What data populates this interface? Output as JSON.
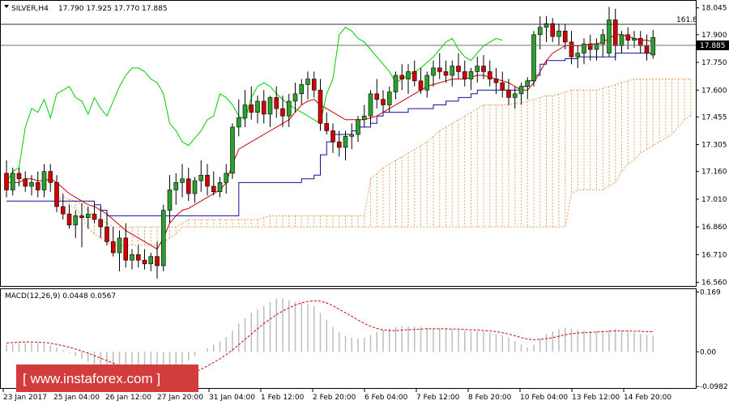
{
  "header": {
    "symbol": "SILVER,H4",
    "ohlc": "17.790 17.925 17.770 17.885"
  },
  "price_axis": {
    "ticks": [
      "18.045",
      "17.900",
      "17.750",
      "17.600",
      "17.455",
      "17.305",
      "17.160",
      "17.010",
      "16.860",
      "16.710",
      "16.560"
    ],
    "current_price": "17.885",
    "fib_label": "161.8"
  },
  "time_axis": {
    "labels": [
      "23 Jan 2017",
      "25 Jan 04:00",
      "26 Jan 12:00",
      "27 Jan 20:00",
      "31 Jan 04:00",
      "1 Feb 12:00",
      "2 Feb 20:00",
      "6 Feb 04:00",
      "7 Feb 12:00",
      "8 Feb 20:00",
      "10 Feb 04:00",
      "13 Feb 12:00",
      "14 Feb 20:00"
    ]
  },
  "macd": {
    "title": "MACD(12,26,9) 0.0448 0.0567",
    "ticks": [
      "0.169",
      "0.00",
      "-0.0982"
    ]
  },
  "watermark": "[ www.instaforex.com ]",
  "colors": {
    "bull": "#2ca02c",
    "bear": "#d40000",
    "tenkan": "#cc0000",
    "kijun": "#1010a0",
    "chikou": "#00cc00",
    "cloud": "#e8a060",
    "macd_hist": "#bdbdbd",
    "macd_signal": "#d40000",
    "watermark_bg": "#d23c3c"
  },
  "chart_data": {
    "type": "candlestick",
    "ylim": [
      16.545,
      18.07
    ],
    "macd_ylim": [
      -0.1,
      0.17
    ],
    "candles": [
      [
        17.15,
        17.22,
        17.02,
        17.06
      ],
      [
        17.06,
        17.18,
        17.03,
        17.15
      ],
      [
        17.15,
        17.18,
        17.08,
        17.12
      ],
      [
        17.12,
        17.16,
        17.05,
        17.08
      ],
      [
        17.08,
        17.14,
        17.03,
        17.1
      ],
      [
        17.1,
        17.16,
        17.02,
        17.06
      ],
      [
        17.06,
        17.2,
        17.02,
        17.16
      ],
      [
        17.16,
        17.2,
        17.05,
        17.1
      ],
      [
        17.1,
        17.14,
        16.94,
        16.97
      ],
      [
        16.97,
        17.04,
        16.9,
        16.93
      ],
      [
        16.93,
        16.98,
        16.85,
        16.87
      ],
      [
        16.87,
        16.95,
        16.8,
        16.92
      ],
      [
        16.92,
        16.99,
        16.75,
        16.91
      ],
      [
        16.91,
        16.97,
        16.85,
        16.93
      ],
      [
        16.93,
        16.99,
        16.88,
        16.9
      ],
      [
        16.9,
        16.97,
        16.8,
        16.86
      ],
      [
        16.86,
        16.95,
        16.76,
        16.78
      ],
      [
        16.78,
        16.86,
        16.7,
        16.72
      ],
      [
        16.72,
        16.84,
        16.62,
        16.8
      ],
      [
        16.8,
        16.88,
        16.64,
        16.68
      ],
      [
        16.68,
        16.74,
        16.63,
        16.71
      ],
      [
        16.71,
        16.76,
        16.64,
        16.68
      ],
      [
        16.68,
        16.74,
        16.63,
        16.66
      ],
      [
        16.66,
        16.72,
        16.62,
        16.7
      ],
      [
        16.7,
        16.78,
        16.58,
        16.65
      ],
      [
        16.65,
        16.98,
        16.62,
        16.95
      ],
      [
        16.95,
        17.14,
        16.88,
        17.06
      ],
      [
        17.06,
        17.15,
        16.98,
        17.1
      ],
      [
        17.1,
        17.2,
        17.02,
        17.12
      ],
      [
        17.12,
        17.18,
        17.0,
        17.04
      ],
      [
        17.04,
        17.13,
        16.99,
        17.11
      ],
      [
        17.11,
        17.22,
        17.05,
        17.14
      ],
      [
        17.14,
        17.2,
        17.03,
        17.08
      ],
      [
        17.08,
        17.16,
        17.03,
        17.05
      ],
      [
        17.05,
        17.13,
        17.02,
        17.1
      ],
      [
        17.1,
        17.2,
        17.04,
        17.15
      ],
      [
        17.15,
        17.42,
        17.12,
        17.4
      ],
      [
        17.4,
        17.55,
        17.35,
        17.45
      ],
      [
        17.45,
        17.6,
        17.4,
        17.52
      ],
      [
        17.52,
        17.62,
        17.44,
        17.48
      ],
      [
        17.48,
        17.57,
        17.42,
        17.54
      ],
      [
        17.54,
        17.6,
        17.42,
        17.47
      ],
      [
        17.47,
        17.57,
        17.4,
        17.56
      ],
      [
        17.56,
        17.62,
        17.45,
        17.5
      ],
      [
        17.5,
        17.57,
        17.4,
        17.46
      ],
      [
        17.46,
        17.58,
        17.4,
        17.54
      ],
      [
        17.54,
        17.64,
        17.48,
        17.58
      ],
      [
        17.58,
        17.66,
        17.52,
        17.63
      ],
      [
        17.63,
        17.7,
        17.55,
        17.66
      ],
      [
        17.66,
        17.7,
        17.56,
        17.6
      ],
      [
        17.6,
        17.66,
        17.38,
        17.42
      ],
      [
        17.42,
        17.48,
        17.36,
        17.38
      ],
      [
        17.38,
        17.42,
        17.26,
        17.32
      ],
      [
        17.32,
        17.38,
        17.24,
        17.29
      ],
      [
        17.29,
        17.38,
        17.22,
        17.35
      ],
      [
        17.35,
        17.42,
        17.28,
        17.36
      ],
      [
        17.36,
        17.46,
        17.32,
        17.44
      ],
      [
        17.44,
        17.52,
        17.4,
        17.46
      ],
      [
        17.46,
        17.6,
        17.42,
        17.58
      ],
      [
        17.58,
        17.66,
        17.5,
        17.55
      ],
      [
        17.55,
        17.6,
        17.48,
        17.52
      ],
      [
        17.52,
        17.62,
        17.48,
        17.59
      ],
      [
        17.59,
        17.7,
        17.55,
        17.68
      ],
      [
        17.68,
        17.74,
        17.6,
        17.66
      ],
      [
        17.66,
        17.74,
        17.58,
        17.7
      ],
      [
        17.7,
        17.76,
        17.62,
        17.65
      ],
      [
        17.65,
        17.72,
        17.58,
        17.6
      ],
      [
        17.6,
        17.7,
        17.56,
        17.68
      ],
      [
        17.68,
        17.76,
        17.62,
        17.72
      ],
      [
        17.72,
        17.8,
        17.66,
        17.7
      ],
      [
        17.7,
        17.76,
        17.64,
        17.68
      ],
      [
        17.68,
        17.76,
        17.62,
        17.73
      ],
      [
        17.73,
        17.8,
        17.66,
        17.7
      ],
      [
        17.7,
        17.76,
        17.62,
        17.66
      ],
      [
        17.66,
        17.72,
        17.6,
        17.7
      ],
      [
        17.7,
        17.78,
        17.64,
        17.73
      ],
      [
        17.73,
        17.79,
        17.66,
        17.7
      ],
      [
        17.7,
        17.76,
        17.62,
        17.66
      ],
      [
        17.66,
        17.72,
        17.58,
        17.64
      ],
      [
        17.64,
        17.7,
        17.56,
        17.6
      ],
      [
        17.6,
        17.66,
        17.52,
        17.56
      ],
      [
        17.56,
        17.62,
        17.5,
        17.58
      ],
      [
        17.58,
        17.64,
        17.52,
        17.62
      ],
      [
        17.62,
        17.67,
        17.55,
        17.65
      ],
      [
        17.65,
        17.92,
        17.62,
        17.9
      ],
      [
        17.9,
        18.0,
        17.82,
        17.94
      ],
      [
        17.94,
        18.0,
        17.86,
        17.96
      ],
      [
        17.96,
        17.99,
        17.86,
        17.89
      ],
      [
        17.89,
        17.96,
        17.84,
        17.92
      ],
      [
        17.92,
        17.96,
        17.82,
        17.86
      ],
      [
        17.86,
        17.92,
        17.74,
        17.78
      ],
      [
        17.78,
        17.84,
        17.72,
        17.8
      ],
      [
        17.8,
        17.88,
        17.74,
        17.85
      ],
      [
        17.85,
        17.9,
        17.76,
        17.82
      ],
      [
        17.82,
        17.88,
        17.76,
        17.85
      ],
      [
        17.85,
        17.93,
        17.78,
        17.9
      ],
      [
        17.8,
        18.05,
        17.78,
        17.98
      ],
      [
        17.98,
        18.04,
        17.76,
        17.84
      ],
      [
        17.84,
        17.92,
        17.8,
        17.9
      ],
      [
        17.9,
        17.94,
        17.82,
        17.87
      ],
      [
        17.87,
        17.92,
        17.83,
        17.88
      ],
      [
        17.88,
        17.92,
        17.8,
        17.84
      ],
      [
        17.84,
        17.9,
        17.76,
        17.8
      ],
      [
        17.79,
        17.925,
        17.77,
        17.885
      ]
    ],
    "macd_hist": [
      0.02,
      0.022,
      0.024,
      0.025,
      0.025,
      0.024,
      0.022,
      0.018,
      0.012,
      0.005,
      -0.003,
      -0.012,
      -0.02,
      -0.028,
      -0.036,
      -0.044,
      -0.052,
      -0.06,
      -0.068,
      -0.074,
      -0.08,
      -0.084,
      -0.087,
      -0.088,
      -0.089,
      -0.082,
      -0.07,
      -0.055,
      -0.04,
      -0.025,
      -0.012,
      0.0,
      0.01,
      0.02,
      0.03,
      0.042,
      0.06,
      0.08,
      0.095,
      0.11,
      0.12,
      0.13,
      0.14,
      0.15,
      0.15,
      0.145,
      0.14,
      0.138,
      0.135,
      0.13,
      0.11,
      0.09,
      0.07,
      0.055,
      0.045,
      0.04,
      0.038,
      0.04,
      0.048,
      0.056,
      0.062,
      0.066,
      0.07,
      0.072,
      0.072,
      0.071,
      0.07,
      0.068,
      0.066,
      0.065,
      0.064,
      0.063,
      0.062,
      0.06,
      0.058,
      0.057,
      0.056,
      0.054,
      0.05,
      0.046,
      0.04,
      0.03,
      0.02,
      0.012,
      0.02,
      0.038,
      0.05,
      0.058,
      0.064,
      0.068,
      0.066,
      0.062,
      0.06,
      0.058,
      0.058,
      0.06,
      0.062,
      0.064,
      0.06,
      0.058,
      0.054,
      0.05,
      0.048,
      0.0448
    ],
    "macd_signal": [
      0.025,
      0.026,
      0.027,
      0.028,
      0.028,
      0.027,
      0.026,
      0.024,
      0.021,
      0.017,
      0.013,
      0.008,
      0.002,
      -0.004,
      -0.011,
      -0.018,
      -0.025,
      -0.032,
      -0.039,
      -0.046,
      -0.053,
      -0.059,
      -0.064,
      -0.069,
      -0.073,
      -0.076,
      -0.077,
      -0.076,
      -0.072,
      -0.066,
      -0.058,
      -0.049,
      -0.04,
      -0.03,
      -0.02,
      -0.008,
      0.005,
      0.02,
      0.035,
      0.05,
      0.065,
      0.08,
      0.092,
      0.105,
      0.115,
      0.124,
      0.132,
      0.138,
      0.142,
      0.144,
      0.143,
      0.138,
      0.13,
      0.12,
      0.11,
      0.1,
      0.09,
      0.08,
      0.072,
      0.066,
      0.062,
      0.06,
      0.06,
      0.061,
      0.062,
      0.063,
      0.064,
      0.065,
      0.065,
      0.065,
      0.065,
      0.064,
      0.064,
      0.063,
      0.062,
      0.061,
      0.06,
      0.059,
      0.057,
      0.054,
      0.05,
      0.045,
      0.04,
      0.036,
      0.034,
      0.035,
      0.037,
      0.04,
      0.044,
      0.048,
      0.051,
      0.053,
      0.054,
      0.055,
      0.056,
      0.057,
      0.058,
      0.059,
      0.059,
      0.059,
      0.058,
      0.058,
      0.057,
      0.0567
    ],
    "tenkan": [
      17.1,
      17.1,
      17.1,
      17.12,
      17.12,
      17.11,
      17.11,
      17.12,
      17.1,
      17.07,
      17.04,
      17.02,
      17.0,
      16.98,
      16.97,
      16.95,
      16.93,
      16.9,
      16.87,
      16.84,
      16.82,
      16.8,
      16.78,
      16.76,
      16.74,
      16.8,
      16.88,
      16.92,
      16.95,
      16.96,
      16.98,
      17.0,
      17.02,
      17.04,
      17.06,
      17.1,
      17.2,
      17.28,
      17.3,
      17.32,
      17.34,
      17.36,
      17.38,
      17.4,
      17.42,
      17.44,
      17.48,
      17.52,
      17.54,
      17.55,
      17.52,
      17.5,
      17.48,
      17.46,
      17.44,
      17.44,
      17.44,
      17.44,
      17.45,
      17.46,
      17.48,
      17.5,
      17.52,
      17.54,
      17.56,
      17.58,
      17.6,
      17.62,
      17.63,
      17.64,
      17.65,
      17.66,
      17.66,
      17.66,
      17.67,
      17.68,
      17.68,
      17.67,
      17.66,
      17.65,
      17.64,
      17.62,
      17.6,
      17.6,
      17.64,
      17.7,
      17.76,
      17.8,
      17.82,
      17.84,
      17.84,
      17.84,
      17.84,
      17.85,
      17.85,
      17.86,
      17.88,
      17.9,
      17.9,
      17.89,
      17.88,
      17.87,
      17.87,
      17.86
    ],
    "kijun": [
      17.0,
      17.0,
      17.0,
      17.0,
      17.0,
      17.0,
      17.0,
      17.0,
      17.0,
      17.0,
      17.0,
      17.0,
      17.0,
      17.0,
      16.98,
      16.95,
      16.92,
      16.92,
      16.92,
      16.92,
      16.92,
      16.92,
      16.92,
      16.92,
      16.92,
      16.92,
      16.92,
      16.92,
      16.92,
      16.92,
      16.92,
      16.92,
      16.92,
      16.92,
      16.92,
      16.92,
      16.92,
      17.1,
      17.1,
      17.1,
      17.1,
      17.1,
      17.1,
      17.1,
      17.1,
      17.1,
      17.1,
      17.12,
      17.12,
      17.14,
      17.25,
      17.32,
      17.36,
      17.36,
      17.36,
      17.38,
      17.4,
      17.4,
      17.42,
      17.46,
      17.48,
      17.48,
      17.48,
      17.48,
      17.5,
      17.5,
      17.5,
      17.5,
      17.52,
      17.52,
      17.54,
      17.54,
      17.56,
      17.56,
      17.58,
      17.6,
      17.6,
      17.6,
      17.6,
      17.6,
      17.6,
      17.6,
      17.62,
      17.65,
      17.68,
      17.74,
      17.76,
      17.76,
      17.76,
      17.77,
      17.77,
      17.78,
      17.78,
      17.78,
      17.78,
      17.78,
      17.78,
      17.8,
      17.8,
      17.8,
      17.8,
      17.8,
      17.8,
      17.8
    ],
    "chikou": [
      17.1,
      17.16,
      17.18,
      17.4,
      17.5,
      17.48,
      17.55,
      17.45,
      17.58,
      17.6,
      17.62,
      17.56,
      17.54,
      17.47,
      17.56,
      17.5,
      17.46,
      17.54,
      17.62,
      17.68,
      17.72,
      17.72,
      17.7,
      17.66,
      17.64,
      17.58,
      17.42,
      17.38,
      17.32,
      17.3,
      17.34,
      17.38,
      17.44,
      17.46,
      17.58,
      17.56,
      17.52,
      17.46,
      17.44,
      17.56,
      17.62,
      17.64,
      17.62,
      17.58,
      17.55,
      17.52,
      17.5,
      17.48,
      17.46,
      17.44,
      17.42,
      17.58,
      17.66,
      17.9,
      17.94,
      17.92,
      17.88,
      17.86,
      17.82,
      17.78,
      17.74,
      17.7,
      17.64,
      17.66,
      17.68,
      17.7,
      17.72,
      17.75,
      17.78,
      17.82,
      17.86,
      17.88,
      17.82,
      17.78,
      17.76,
      17.8,
      17.84,
      17.86,
      17.88,
      17.87
    ],
    "senkou_a": [
      17.02,
      17.02,
      17.01,
      17.0,
      16.98,
      16.95,
      16.92,
      16.9,
      16.88,
      16.86,
      16.86,
      16.86,
      16.86,
      16.86,
      16.86,
      16.86,
      16.86,
      16.86,
      16.86,
      16.86,
      16.88,
      16.9,
      16.9,
      16.9,
      16.9,
      16.9,
      16.9,
      16.9,
      16.9,
      16.9,
      16.9,
      16.9,
      16.9,
      16.91,
      16.92,
      16.92,
      16.92,
      16.92,
      16.92,
      16.92,
      16.92,
      16.92,
      16.92,
      16.92,
      16.92,
      16.92,
      16.92,
      16.92,
      16.92,
      16.92,
      17.12,
      17.15,
      17.18,
      17.2,
      17.22,
      17.24,
      17.26,
      17.28,
      17.3,
      17.32,
      17.35,
      17.38,
      17.4,
      17.42,
      17.44,
      17.46,
      17.48,
      17.5,
      17.52,
      17.52,
      17.52,
      17.52,
      17.52,
      17.53,
      17.53,
      17.54,
      17.55,
      17.56,
      17.57,
      17.57,
      17.58,
      17.59,
      17.6,
      17.6,
      17.6,
      17.6,
      17.6,
      17.61,
      17.62,
      17.63,
      17.64,
      17.65,
      17.66,
      17.66,
      17.66,
      17.66,
      17.66,
      17.66,
      17.66,
      17.66,
      17.66,
      17.66,
      17.66,
      17.66,
      17.66,
      17.66
    ],
    "senkou_b": [
      17.02,
      17.0,
      16.98,
      16.96,
      16.92,
      16.86,
      16.82,
      16.8,
      16.78,
      16.76,
      16.76,
      16.76,
      16.76,
      16.76,
      16.76,
      16.76,
      16.76,
      16.78,
      16.8,
      16.82,
      16.86,
      16.86,
      16.86,
      16.86,
      16.86,
      16.86,
      16.86,
      16.86,
      16.86,
      16.86,
      16.86,
      16.86,
      16.86,
      16.86,
      16.86,
      16.86,
      16.86,
      16.86,
      16.86,
      16.86,
      16.86,
      16.86,
      16.86,
      16.86,
      16.86,
      16.86,
      16.86,
      16.86,
      16.86,
      16.86,
      16.86,
      16.86,
      16.86,
      16.86,
      16.86,
      16.86,
      16.86,
      16.86,
      16.86,
      16.86,
      16.86,
      16.86,
      16.86,
      16.86,
      16.86,
      16.86,
      16.86,
      16.86,
      16.86,
      16.86,
      16.86,
      16.86,
      16.86,
      16.86,
      16.86,
      16.86,
      16.86,
      16.86,
      16.86,
      16.86,
      16.86,
      16.86,
      17.04,
      17.06,
      17.06,
      17.06,
      17.06,
      17.06,
      17.08,
      17.1,
      17.16,
      17.2,
      17.22,
      17.26,
      17.28,
      17.3,
      17.32,
      17.34,
      17.36,
      17.4,
      17.44,
      17.46,
      17.48,
      17.5,
      17.5,
      17.52
    ]
  }
}
